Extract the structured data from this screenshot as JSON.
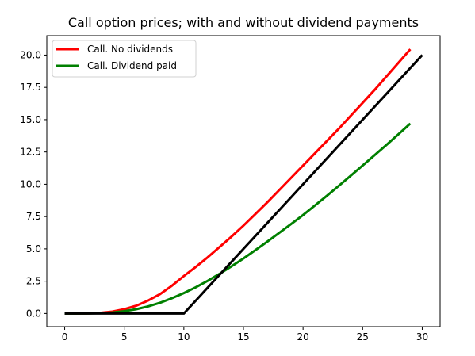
{
  "chart_data": {
    "type": "line",
    "title": "Call option prices; with and without dividend payments",
    "x": [
      0,
      1,
      2,
      3,
      4,
      5,
      6,
      7,
      8,
      9,
      10,
      11,
      12,
      13,
      14,
      15,
      16,
      17,
      18,
      19,
      20,
      21,
      22,
      23,
      24,
      25,
      26,
      27,
      28,
      29,
      30
    ],
    "series": [
      {
        "name": "Call. No dividends",
        "color": "#ff0000",
        "values": [
          0,
          0,
          0.01,
          0.05,
          0.15,
          0.33,
          0.6,
          1.0,
          1.5,
          2.15,
          2.9,
          3.6,
          4.35,
          5.15,
          5.95,
          6.8,
          7.7,
          8.6,
          9.55,
          10.5,
          11.45,
          12.4,
          13.35,
          14.3,
          15.3,
          16.3,
          17.3,
          18.35,
          19.4,
          20.45,
          null
        ]
      },
      {
        "name": "Call. Dividend paid",
        "color": "#008000",
        "values": [
          0,
          0,
          0.01,
          0.03,
          0.08,
          0.18,
          0.33,
          0.55,
          0.83,
          1.18,
          1.58,
          2.03,
          2.53,
          3.07,
          3.65,
          4.26,
          4.9,
          5.56,
          6.24,
          6.92,
          7.62,
          8.36,
          9.11,
          9.88,
          10.66,
          11.45,
          12.25,
          13.05,
          13.87,
          14.7,
          null
        ]
      },
      {
        "color": "#000000",
        "values": [
          0,
          0,
          0,
          0,
          0,
          0,
          0,
          0,
          0,
          0,
          0,
          1,
          2,
          3,
          4,
          5,
          6,
          7,
          8,
          9,
          10,
          11,
          12,
          13,
          14,
          15,
          16,
          17,
          18,
          19,
          20
        ]
      }
    ],
    "xlim": [
      -1.5,
      31.5
    ],
    "xticks": [
      0,
      5,
      10,
      15,
      20,
      25,
      30
    ],
    "ylim": [
      -1.02,
      21.5
    ],
    "yticks": [
      {
        "value": 0,
        "label": "0.0"
      },
      {
        "value": 2.5,
        "label": "2.5"
      },
      {
        "value": 5,
        "label": "5.0"
      },
      {
        "value": 7.5,
        "label": "7.5"
      },
      {
        "value": 10,
        "label": "10.0"
      },
      {
        "value": 12.5,
        "label": "12.5"
      },
      {
        "value": 15,
        "label": "15.0"
      },
      {
        "value": 17.5,
        "label": "17.5"
      },
      {
        "value": 20,
        "label": "20.0"
      }
    ],
    "legend": "upper left"
  }
}
